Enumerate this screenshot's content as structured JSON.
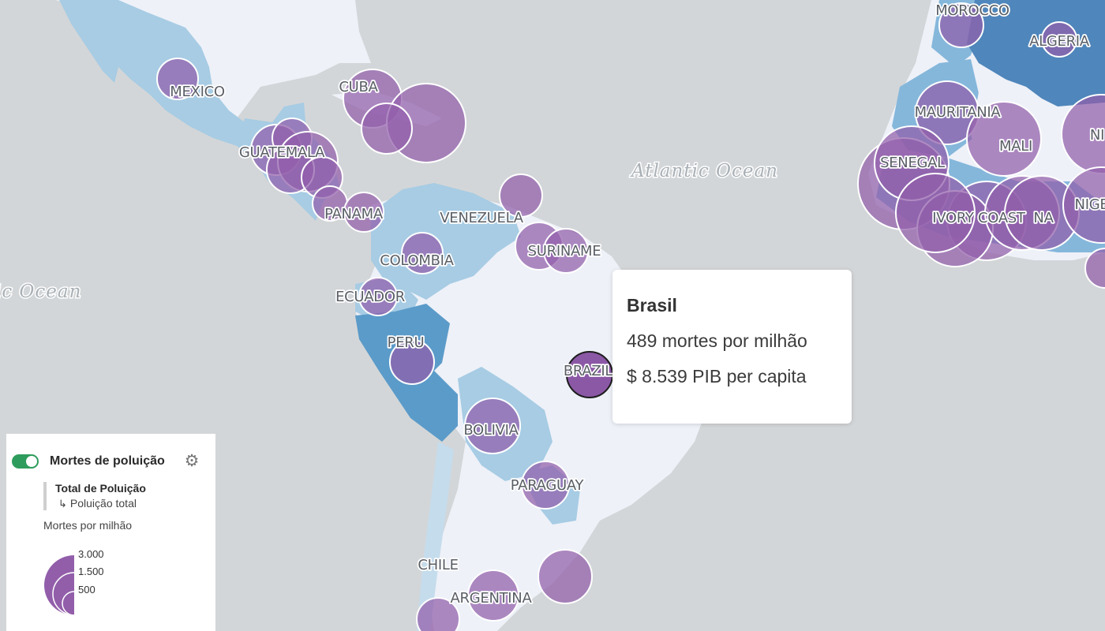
{
  "map": {
    "ocean_labels": [
      "Atlantic Ocean",
      "ic Ocean"
    ],
    "country_labels": [
      "MOROCCO",
      "ALGERIA",
      "MEXICO",
      "CUBA",
      "MAURITANIA",
      "MALI",
      "NI",
      "GUATEMALA",
      "SENEGAL",
      "PANAMA",
      "VENEZUELA",
      "IVORY COAST",
      "NA",
      "NIGE",
      "SURINAME",
      "COLOMBIA",
      "ECUADOR",
      "PERU",
      "BRAZIL",
      "BOLIVIA",
      "PARAGUAY",
      "CHILE",
      "ARGENTINA"
    ],
    "colors": {
      "ocean": "#d3d6d8",
      "land_light": "#eef1f8",
      "choropleth_light": "#a7cce4",
      "choropleth_mid": "#85b7db",
      "choropleth_dark": "#5b9bc9",
      "bubble": "#925eaa"
    }
  },
  "tooltip": {
    "title": "Brasil",
    "line1": "489 mortes por milhão",
    "line2": "$ 8.539 PIB per capita"
  },
  "legend": {
    "toggle_on": true,
    "layer_title": "Mortes de poluição",
    "settings_icon": "gear-icon",
    "variable_name": "Total de Poluição",
    "variable_sub": "Poluição total",
    "size_title": "Mortes por milhão",
    "size_values": [
      "3.000",
      "1.500",
      "500"
    ]
  }
}
